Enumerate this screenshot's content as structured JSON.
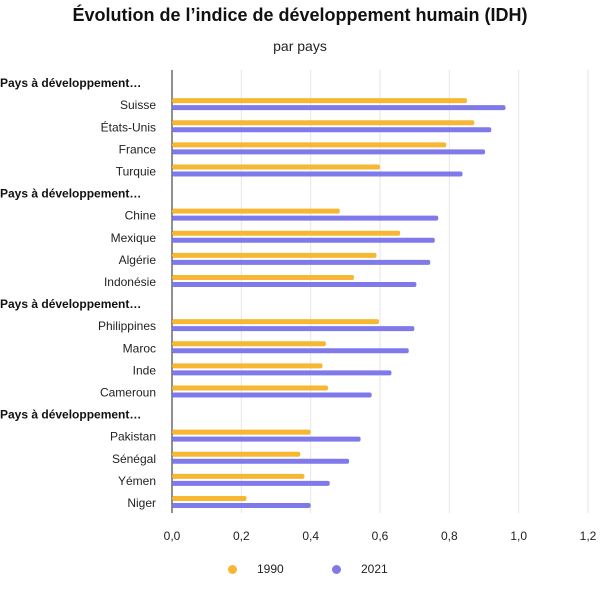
{
  "chart_data": {
    "type": "bar",
    "orientation": "horizontal",
    "title": "Évolution de l’indice de développement humain (IDH)",
    "subtitle": "par pays",
    "xlim": [
      0,
      1.2
    ],
    "xticks": [
      "0,0",
      "0,2",
      "0,4",
      "0,6",
      "0,8",
      "1,0",
      "1,2"
    ],
    "grid": true,
    "legend_position": "bottom",
    "groups": [
      {
        "label": "Pays à développement…",
        "categories": [
          "Suisse",
          "États-Unis",
          "France",
          "Turquie"
        ]
      },
      {
        "label": "Pays à développement…",
        "categories": [
          "Chine",
          "Mexique",
          "Algérie",
          "Indonésie"
        ]
      },
      {
        "label": "Pays à développement…",
        "categories": [
          "Philippines",
          "Maroc",
          "Inde",
          "Cameroun"
        ]
      },
      {
        "label": "Pays à développement…",
        "categories": [
          "Pakistan",
          "Sénégal",
          "Yémen",
          "Niger"
        ]
      }
    ],
    "categories": [
      "Suisse",
      "États-Unis",
      "France",
      "Turquie",
      "Chine",
      "Mexique",
      "Algérie",
      "Indonésie",
      "Philippines",
      "Maroc",
      "Inde",
      "Cameroun",
      "Pakistan",
      "Sénégal",
      "Yémen",
      "Niger"
    ],
    "series": [
      {
        "name": "1990",
        "color": "#F7B733",
        "values": [
          0.851,
          0.872,
          0.791,
          0.6,
          0.484,
          0.658,
          0.59,
          0.525,
          0.597,
          0.444,
          0.434,
          0.45,
          0.4,
          0.37,
          0.382,
          0.215
        ]
      },
      {
        "name": "2021",
        "color": "#8079EA",
        "values": [
          0.962,
          0.921,
          0.903,
          0.838,
          0.768,
          0.758,
          0.745,
          0.705,
          0.699,
          0.683,
          0.633,
          0.576,
          0.544,
          0.511,
          0.455,
          0.4
        ]
      }
    ]
  }
}
